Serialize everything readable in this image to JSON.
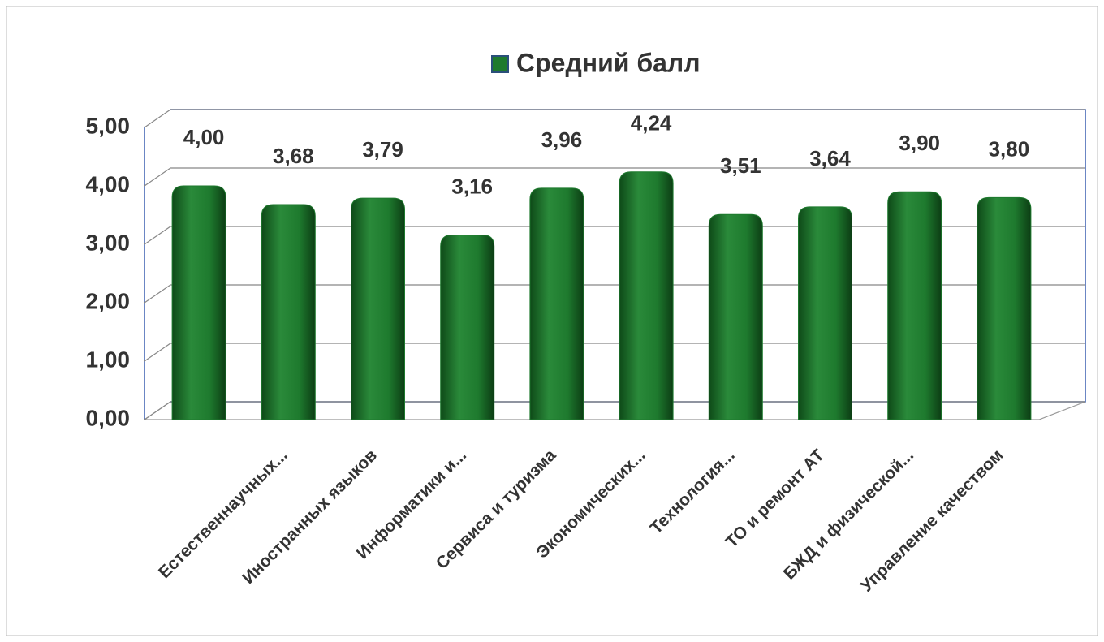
{
  "chart_data": {
    "type": "bar",
    "series": [
      {
        "name": "Средний балл",
        "color": "#1e7a2e",
        "values": [
          4.0,
          3.68,
          3.79,
          3.16,
          3.96,
          4.24,
          3.51,
          3.64,
          3.9,
          3.8
        ],
        "value_labels": [
          "4,00",
          "3,68",
          "3,79",
          "3,16",
          "3,96",
          "4,24",
          "3,51",
          "3,64",
          "3,90",
          "3,80"
        ]
      }
    ],
    "categories": [
      null,
      "Естественнаучных...",
      "Иностранных языков",
      "Информатики и...",
      "Сервиса и туризма",
      "Экономических...",
      "Технология...",
      "ТО и ремонт АТ",
      "БЖД и физической...",
      "Управление качеством"
    ],
    "ylim": [
      0,
      5
    ],
    "yticks": [
      {
        "value": 0,
        "label": "0,00"
      },
      {
        "value": 1,
        "label": "1,00"
      },
      {
        "value": 2,
        "label": "2,00"
      },
      {
        "value": 3,
        "label": "3,00"
      },
      {
        "value": 4,
        "label": "4,00"
      },
      {
        "value": 5,
        "label": "5,00"
      }
    ],
    "grid": true,
    "legend": "top"
  }
}
